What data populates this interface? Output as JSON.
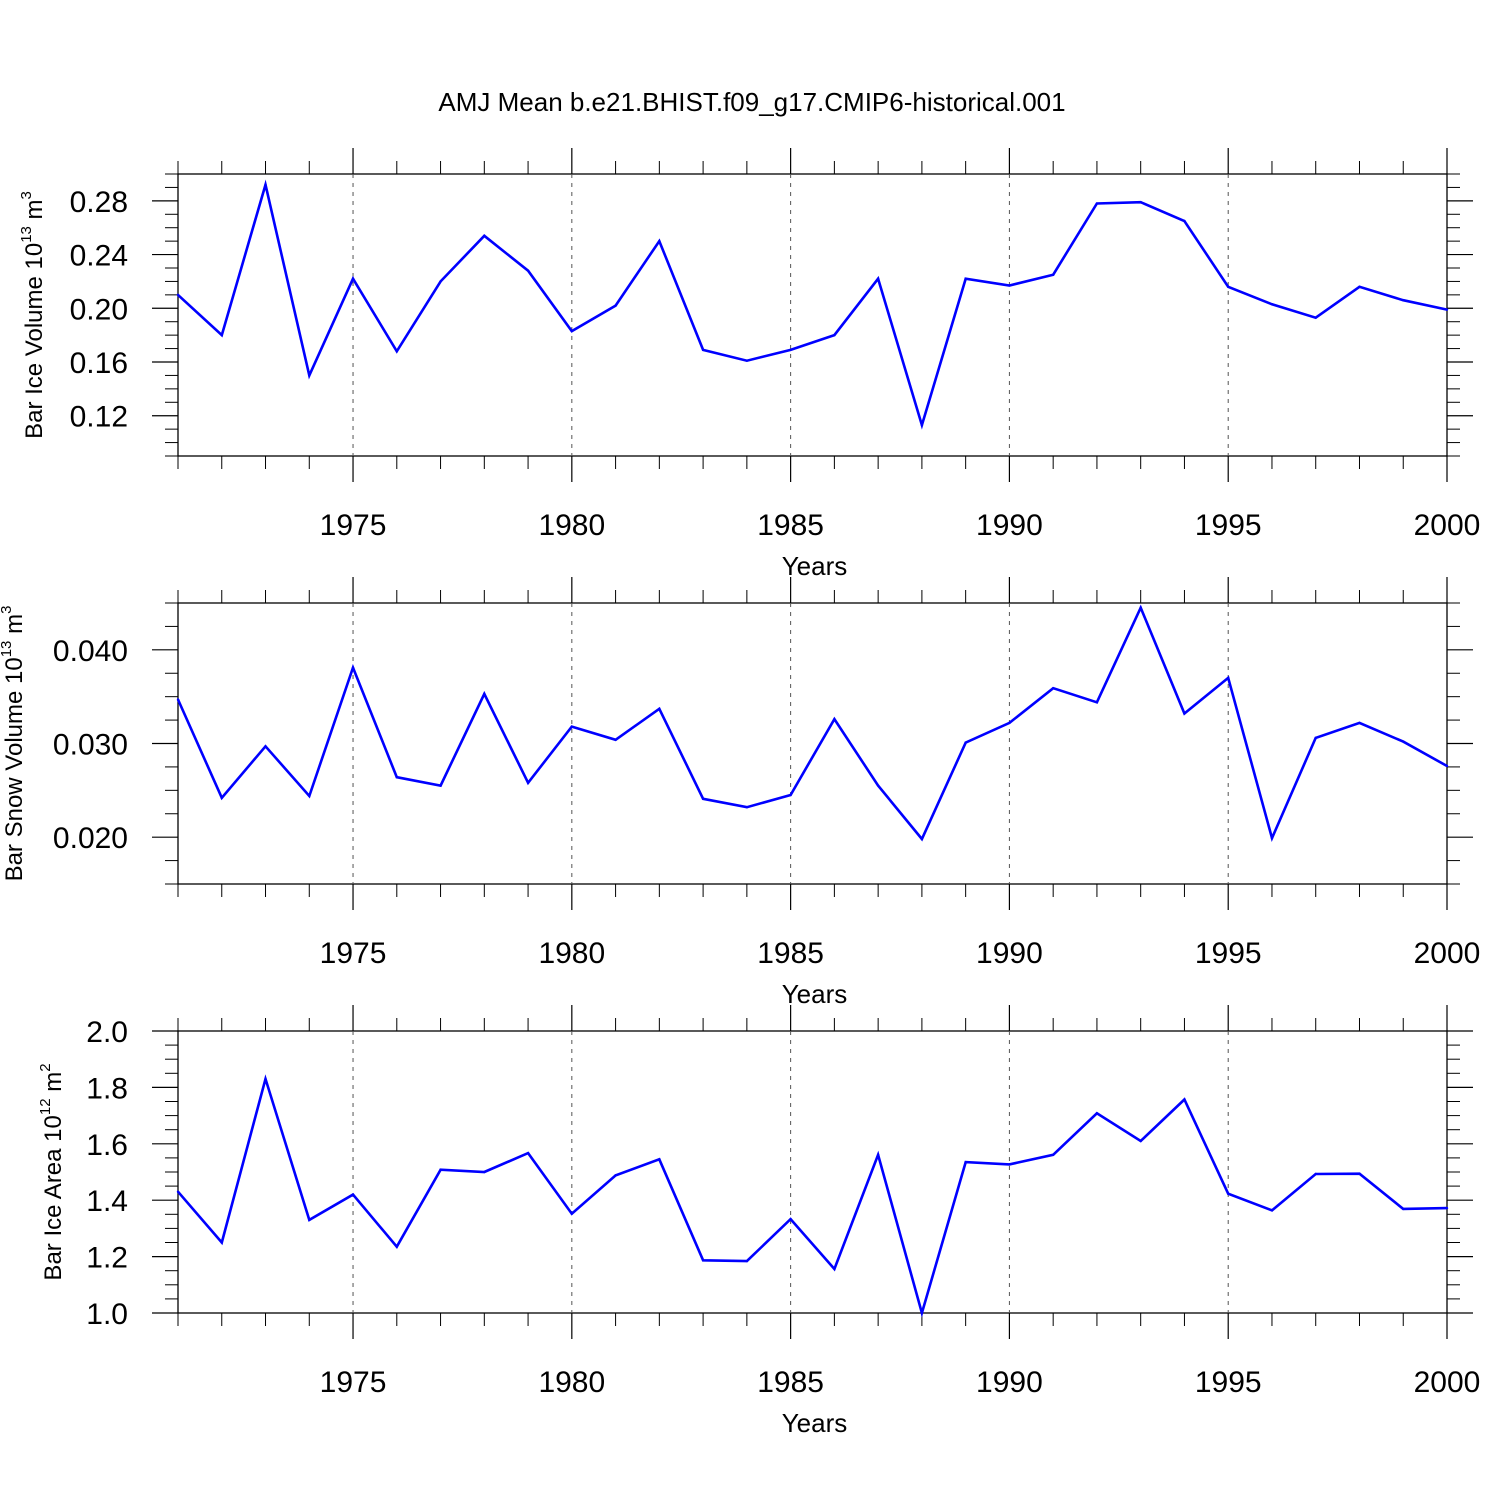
{
  "title": "AMJ Mean b.e21.BHIST.f09_g17.CMIP6-historical.001",
  "colors": {
    "line": "#0000ff",
    "axis": "#000000",
    "gridline": "#555555"
  },
  "chart_data": [
    {
      "type": "line",
      "xlabel": "Years",
      "ylabel": {
        "prefix": "Bar Ice Volume 10",
        "exp": "13",
        "mid": " m",
        "unit_exp": "3"
      },
      "xlim": [
        1971,
        2000
      ],
      "ylim": [
        0.09,
        0.3
      ],
      "xticks": [
        "1975",
        "1980",
        "1985",
        "1990",
        "1995",
        "2000"
      ],
      "yticks": [
        "0.12",
        "0.16",
        "0.20",
        "0.24",
        "0.28"
      ],
      "grid": "vertical dashed at major x ticks",
      "x": [
        1971,
        1972,
        1973,
        1974,
        1975,
        1976,
        1977,
        1978,
        1979,
        1980,
        1981,
        1982,
        1983,
        1984,
        1985,
        1986,
        1987,
        1988,
        1989,
        1990,
        1991,
        1992,
        1993,
        1994,
        1995,
        1996,
        1997,
        1998,
        1999,
        2000
      ],
      "values": [
        0.21,
        0.18,
        0.292,
        0.15,
        0.222,
        0.168,
        0.22,
        0.254,
        0.228,
        0.183,
        0.202,
        0.25,
        0.169,
        0.161,
        0.169,
        0.18,
        0.222,
        0.113,
        0.222,
        0.217,
        0.225,
        0.278,
        0.279,
        0.265,
        0.216,
        0.203,
        0.193,
        0.216,
        0.206,
        0.199
      ]
    },
    {
      "type": "line",
      "xlabel": "Years",
      "ylabel": {
        "prefix": "Bar Snow Volume 10",
        "exp": "13",
        "mid": " m",
        "unit_exp": "3"
      },
      "xlim": [
        1971,
        2000
      ],
      "ylim": [
        0.015,
        0.045
      ],
      "xticks": [
        "1975",
        "1980",
        "1985",
        "1990",
        "1995",
        "2000"
      ],
      "yticks": [
        "0.020",
        "0.030",
        "0.040"
      ],
      "grid": "vertical dashed at major x ticks",
      "x": [
        1971,
        1972,
        1973,
        1974,
        1975,
        1976,
        1977,
        1978,
        1979,
        1980,
        1981,
        1982,
        1983,
        1984,
        1985,
        1986,
        1987,
        1988,
        1989,
        1990,
        1991,
        1992,
        1993,
        1994,
        1995,
        1996,
        1997,
        1998,
        1999,
        2000
      ],
      "values": [
        0.0347,
        0.0242,
        0.0297,
        0.0244,
        0.0381,
        0.0264,
        0.0255,
        0.0353,
        0.0258,
        0.0318,
        0.0304,
        0.0337,
        0.0241,
        0.0232,
        0.0245,
        0.0326,
        0.0255,
        0.0198,
        0.0301,
        0.0322,
        0.0359,
        0.0344,
        0.0445,
        0.0332,
        0.037,
        0.0199,
        0.0306,
        0.0322,
        0.0302,
        0.0276
      ]
    },
    {
      "type": "line",
      "xlabel": "Years",
      "ylabel": {
        "prefix": "Bar Ice Area 10",
        "exp": "12",
        "mid": " m",
        "unit_exp": "2"
      },
      "xlim": [
        1971,
        2000
      ],
      "ylim": [
        1.0,
        2.0
      ],
      "xticks": [
        "1975",
        "1980",
        "1985",
        "1990",
        "1995",
        "2000"
      ],
      "yticks": [
        "1.0",
        "1.2",
        "1.4",
        "1.6",
        "1.8",
        "2.0"
      ],
      "grid": "vertical dashed at major x ticks",
      "x": [
        1971,
        1972,
        1973,
        1974,
        1975,
        1976,
        1977,
        1978,
        1979,
        1980,
        1981,
        1982,
        1983,
        1984,
        1985,
        1986,
        1987,
        1988,
        1989,
        1990,
        1991,
        1992,
        1993,
        1994,
        1995,
        1996,
        1997,
        1998,
        1999,
        2000
      ],
      "values": [
        1.43,
        1.25,
        1.83,
        1.33,
        1.42,
        1.235,
        1.508,
        1.5,
        1.567,
        1.352,
        1.488,
        1.545,
        1.187,
        1.184,
        1.333,
        1.156,
        1.561,
        1.0,
        1.535,
        1.527,
        1.561,
        1.708,
        1.61,
        1.757,
        1.423,
        1.364,
        1.493,
        1.494,
        1.369,
        1.372
      ]
    }
  ]
}
